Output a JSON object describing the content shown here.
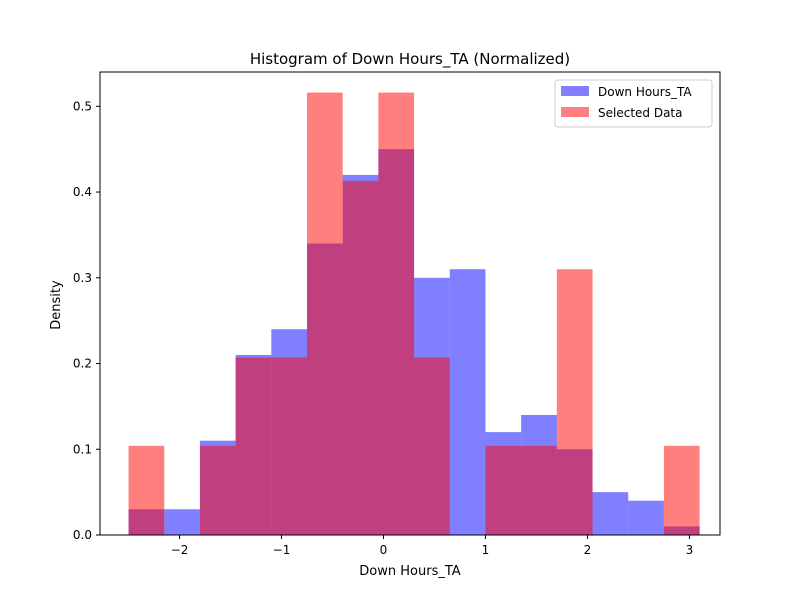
{
  "chart_data": {
    "type": "bar",
    "title": "Histogram of Down Hours_TA (Normalized)",
    "xlabel": "Down Hours_TA",
    "ylabel": "Density",
    "xlim": [
      -2.78,
      3.3
    ],
    "ylim": [
      0,
      0.54
    ],
    "xticks": [
      {
        "value": -2,
        "label": "−2"
      },
      {
        "value": -1,
        "label": "−1"
      },
      {
        "value": 0,
        "label": "0"
      },
      {
        "value": 1,
        "label": "1"
      },
      {
        "value": 2,
        "label": "2"
      },
      {
        "value": 3,
        "label": "3"
      }
    ],
    "yticks": [
      {
        "value": 0.0,
        "label": "0.0"
      },
      {
        "value": 0.1,
        "label": "0.1"
      },
      {
        "value": 0.2,
        "label": "0.2"
      },
      {
        "value": 0.3,
        "label": "0.3"
      },
      {
        "value": 0.4,
        "label": "0.4"
      },
      {
        "value": 0.5,
        "label": "0.5"
      }
    ],
    "bin_edges": [
      -2.5,
      -2.15,
      -1.8,
      -1.45,
      -1.1,
      -0.75,
      -0.4,
      -0.05,
      0.3,
      0.65,
      1.0,
      1.35,
      1.7,
      2.05,
      2.4,
      2.75,
      3.1
    ],
    "series": [
      {
        "name": "Down Hours_TA",
        "color": "#0000ff",
        "opacity": 0.5,
        "values": [
          0.03,
          0.03,
          0.11,
          0.21,
          0.24,
          0.34,
          0.42,
          0.45,
          0.3,
          0.31,
          0.12,
          0.14,
          0.1,
          0.05,
          0.04,
          0.01
        ]
      },
      {
        "name": "Selected Data",
        "color": "#ff0000",
        "opacity": 0.5,
        "values": [
          0.104,
          0.0,
          0.104,
          0.207,
          0.207,
          0.516,
          0.413,
          0.516,
          0.207,
          0.0,
          0.104,
          0.104,
          0.31,
          0.0,
          0.0,
          0.104
        ]
      }
    ],
    "grid": false,
    "legend": "top-right"
  }
}
